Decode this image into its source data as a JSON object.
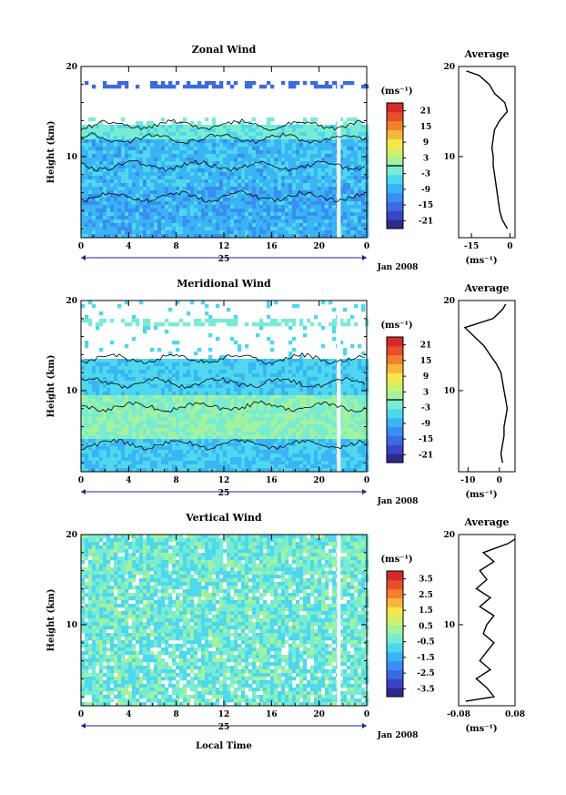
{
  "figure": {
    "x_axis_title": "Local Time",
    "date_label": "Jan 2008",
    "day_label": "25"
  },
  "colors": {
    "scale": [
      "#2b2b8c",
      "#3a44c6",
      "#3c6ae0",
      "#3a8ef2",
      "#39b4f5",
      "#4fd7ee",
      "#78ecd2",
      "#a4f29c",
      "#d0f06a",
      "#f5e84a",
      "#f7b63c",
      "#f3802f",
      "#e84e2b",
      "#d42a2a"
    ]
  },
  "chart_data": [
    {
      "type": "heatmap",
      "id": "zonal",
      "title": "Zonal Wind",
      "ylabel": "Height (km)",
      "ylim": [
        1,
        20
      ],
      "xlim": [
        0,
        24
      ],
      "x_ticks": [
        "0",
        "4",
        "8",
        "12",
        "16",
        "20",
        "0"
      ],
      "y_ticks": [
        "10",
        "20"
      ],
      "colorbar": {
        "unit": "(ms⁻¹)",
        "ticks": [
          "21",
          "15",
          "9",
          "3",
          "-3",
          "-9",
          "-15",
          "-21"
        ],
        "range": [
          -24,
          24
        ]
      },
      "profile": {
        "title": "Average",
        "xlabel": "(ms⁻¹)",
        "x_ticks": [
          "-15",
          "0"
        ],
        "xlim": [
          -20,
          2
        ],
        "y_ticks": [
          "10",
          "20"
        ],
        "heights": [
          2,
          3,
          4,
          5,
          6,
          7,
          8,
          9,
          10,
          11,
          12,
          13,
          14,
          15,
          16,
          17,
          18,
          19,
          19.5
        ],
        "values": [
          -1,
          -3,
          -4,
          -4.5,
          -5,
          -5.5,
          -6,
          -6.5,
          -6.5,
          -7,
          -6.5,
          -6,
          -4,
          -1,
          -2,
          -6,
          -8,
          -12,
          -17
        ]
      }
    },
    {
      "type": "heatmap",
      "id": "meridional",
      "title": "Meridional Wind",
      "ylabel": "Height (km)",
      "ylim": [
        1,
        20
      ],
      "xlim": [
        0,
        24
      ],
      "x_ticks": [
        "0",
        "4",
        "8",
        "12",
        "16",
        "20",
        "0"
      ],
      "y_ticks": [
        "10",
        "20"
      ],
      "colorbar": {
        "unit": "(ms⁻¹)",
        "ticks": [
          "21",
          "15",
          "9",
          "3",
          "-3",
          "-9",
          "-15",
          "-21"
        ],
        "range": [
          -24,
          24
        ]
      },
      "profile": {
        "title": "Average",
        "xlabel": "(ms⁻¹)",
        "x_ticks": [
          "-10",
          "0"
        ],
        "xlim": [
          -13,
          5
        ],
        "y_ticks": [
          "10",
          "20"
        ],
        "heights": [
          2,
          3,
          4,
          5,
          6,
          7,
          8,
          9,
          10,
          11,
          12,
          13,
          14,
          15,
          16,
          17,
          18,
          19,
          19.6
        ],
        "values": [
          1,
          0.5,
          1,
          1.5,
          1.5,
          2,
          2.5,
          2,
          1.5,
          1,
          0.5,
          -1,
          -3,
          -5,
          -8,
          -11,
          -2,
          1,
          2
        ]
      }
    },
    {
      "type": "heatmap",
      "id": "vertical",
      "title": "Vertical Wind",
      "ylabel": "Height (km)",
      "ylim": [
        1,
        20
      ],
      "xlim": [
        0,
        24
      ],
      "x_ticks": [
        "0",
        "4",
        "8",
        "12",
        "16",
        "20",
        "0"
      ],
      "y_ticks": [
        "10",
        "20"
      ],
      "colorbar": {
        "unit": "(ms⁻¹)",
        "ticks": [
          "3.5",
          "2.5",
          "1.5",
          "0.5",
          "-0.5",
          "-1.5",
          "-2.5",
          "-3.5"
        ],
        "range": [
          -4,
          4
        ]
      },
      "profile": {
        "title": "Average",
        "xlabel": "(ms⁻¹)",
        "x_ticks": [
          "-0.08",
          "0.08"
        ],
        "xlim": [
          -0.08,
          0.08
        ],
        "y_ticks": [
          "10",
          "20"
        ],
        "heights": [
          1.5,
          2,
          3,
          4,
          5,
          6,
          7,
          8,
          9,
          10,
          11,
          12,
          13,
          14,
          15,
          16,
          17,
          18,
          19,
          19.5
        ],
        "values": [
          -0.06,
          0.02,
          0.0,
          -0.03,
          0.01,
          -0.02,
          0.0,
          0.02,
          -0.01,
          0.0,
          0.02,
          -0.02,
          0.01,
          -0.03,
          0.0,
          -0.02,
          0.02,
          -0.01,
          0.06,
          0.08
        ]
      }
    }
  ]
}
